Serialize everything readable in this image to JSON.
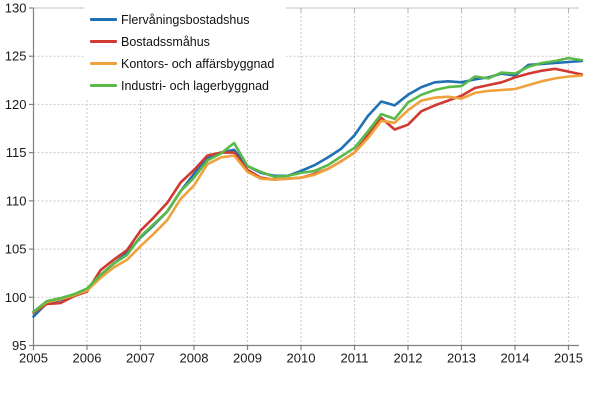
{
  "chart_data": {
    "type": "line",
    "title": "",
    "xlabel": "",
    "ylabel": "",
    "ylim": [
      95,
      130
    ],
    "yticks": [
      95,
      100,
      105,
      110,
      115,
      120,
      125,
      130
    ],
    "xticks": [
      2005,
      2006,
      2007,
      2008,
      2009,
      2010,
      2011,
      2012,
      2013,
      2014,
      2015
    ],
    "grid": true,
    "legend_position": "top-left-inside",
    "axis_color": "#808080",
    "gridline_color": "#c8c8c8",
    "tick_label_color": "#1a1a1a",
    "x": [
      2005.0,
      2005.25,
      2005.5,
      2005.75,
      2006.0,
      2006.25,
      2006.5,
      2006.75,
      2007.0,
      2007.25,
      2007.5,
      2007.75,
      2008.0,
      2008.25,
      2008.5,
      2008.75,
      2009.0,
      2009.25,
      2009.5,
      2009.75,
      2010.0,
      2010.25,
      2010.5,
      2010.75,
      2011.0,
      2011.25,
      2011.5,
      2011.75,
      2012.0,
      2012.25,
      2012.5,
      2012.75,
      2013.0,
      2013.25,
      2013.5,
      2013.75,
      2014.0,
      2014.25,
      2014.5,
      2014.75,
      2015.0,
      2015.25
    ],
    "series": [
      {
        "name": "Flervåningsbostadshus",
        "color": "#2070b4",
        "values": [
          98.0,
          99.4,
          99.7,
          100.2,
          100.8,
          102.3,
          103.5,
          104.6,
          106.2,
          107.5,
          108.9,
          111.0,
          112.8,
          114.4,
          115.0,
          115.3,
          113.6,
          112.9,
          112.6,
          112.6,
          113.1,
          113.7,
          114.5,
          115.4,
          116.8,
          118.8,
          120.3,
          119.9,
          121.0,
          121.8,
          122.3,
          122.4,
          122.3,
          122.6,
          122.8,
          123.2,
          123.0,
          124.1,
          124.2,
          124.3,
          124.4,
          124.5
        ]
      },
      {
        "name": "Bostadssmåhus",
        "color": "#d03a31",
        "values": [
          98.4,
          99.3,
          99.4,
          100.1,
          100.6,
          102.8,
          103.9,
          104.9,
          106.9,
          108.3,
          109.8,
          111.9,
          113.2,
          114.7,
          115.0,
          115.0,
          113.2,
          112.4,
          112.2,
          112.3,
          112.4,
          112.8,
          113.3,
          114.1,
          115.0,
          116.8,
          118.6,
          117.4,
          117.9,
          119.3,
          119.9,
          120.4,
          120.9,
          121.7,
          122.0,
          122.3,
          122.8,
          123.2,
          123.5,
          123.7,
          123.4,
          123.1
        ]
      },
      {
        "name": "Kontors- och affärsbyggnad",
        "color": "#efa13e",
        "values": [
          98.5,
          99.5,
          99.8,
          100.2,
          100.7,
          102.0,
          103.1,
          103.9,
          105.3,
          106.6,
          108.0,
          110.2,
          111.6,
          113.8,
          114.5,
          114.7,
          113.0,
          112.3,
          112.2,
          112.3,
          112.4,
          112.7,
          113.3,
          114.1,
          115.0,
          116.5,
          118.3,
          118.1,
          119.4,
          120.4,
          120.7,
          120.8,
          120.6,
          121.2,
          121.4,
          121.5,
          121.6,
          122.0,
          122.4,
          122.7,
          122.9,
          123.0
        ]
      },
      {
        "name": "Industri- och lagerbyggnad",
        "color": "#59ba49",
        "values": [
          98.5,
          99.6,
          99.9,
          100.3,
          100.9,
          102.3,
          103.5,
          104.4,
          106.3,
          107.6,
          108.9,
          111.0,
          112.4,
          114.2,
          114.9,
          116.0,
          113.6,
          113.0,
          112.5,
          112.6,
          112.9,
          113.1,
          113.7,
          114.6,
          115.5,
          117.2,
          119.0,
          118.5,
          120.2,
          121.0,
          121.5,
          121.8,
          121.9,
          122.9,
          122.7,
          123.3,
          123.2,
          123.9,
          124.3,
          124.5,
          124.8,
          124.6
        ]
      }
    ]
  }
}
